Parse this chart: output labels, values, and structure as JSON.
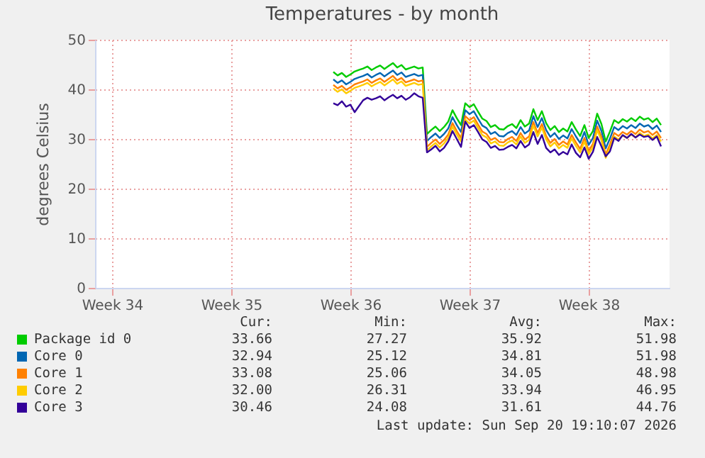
{
  "chart_data": {
    "type": "line",
    "title": "Temperatures - by month",
    "ylabel": "degrees Celsius",
    "categories": [
      null,
      null,
      null,
      null,
      "Week 34",
      null,
      null,
      null,
      null,
      null,
      null,
      null,
      null,
      null,
      null,
      null,
      null,
      null,
      null,
      null,
      null,
      null,
      null,
      null,
      null,
      null,
      null,
      null,
      null,
      null,
      null,
      null,
      "Week 35",
      null,
      null,
      null,
      null,
      null,
      null,
      null,
      null,
      null,
      null,
      null,
      null,
      null,
      null,
      null,
      null,
      null,
      null,
      null,
      null,
      null,
      null,
      null,
      null,
      null,
      null,
      null,
      "Week 36",
      null,
      null,
      null,
      null,
      null,
      null,
      null,
      null,
      null,
      null,
      null,
      null,
      null,
      null,
      null,
      null,
      null,
      null,
      null,
      null,
      null,
      null,
      null,
      null,
      null,
      null,
      null,
      "Week 37",
      null,
      null,
      null,
      null,
      null,
      null,
      null,
      null,
      null,
      null,
      null,
      null,
      null,
      null,
      null,
      null,
      null,
      null,
      null,
      null,
      null,
      null,
      null,
      null,
      null,
      null,
      null,
      "Week 38",
      null,
      null,
      null,
      null,
      null,
      null,
      null,
      null,
      null,
      null,
      null,
      null,
      null,
      null,
      null,
      null,
      null,
      null,
      null
    ],
    "ylim": [
      0,
      50
    ],
    "yticks": [
      0,
      10,
      20,
      30,
      40,
      50
    ],
    "grid": true,
    "legend": "bottom",
    "series": [
      {
        "name": "Package id 0",
        "color": "#00cc00",
        "values": [
          null,
          null,
          null,
          null,
          null,
          null,
          null,
          null,
          null,
          null,
          null,
          null,
          null,
          null,
          null,
          null,
          null,
          null,
          null,
          null,
          null,
          null,
          null,
          null,
          null,
          null,
          null,
          null,
          null,
          null,
          null,
          null,
          null,
          null,
          null,
          null,
          null,
          null,
          null,
          null,
          null,
          null,
          null,
          null,
          null,
          null,
          null,
          null,
          null,
          null,
          null,
          null,
          null,
          null,
          null,
          null,
          43.5,
          42.8,
          43.3,
          42.5,
          43.0,
          43.6,
          43.9,
          44.2,
          44.6,
          43.9,
          44.4,
          44.8,
          44.1,
          44.7,
          45.3,
          44.4,
          44.9,
          44.0,
          44.3,
          44.6,
          44.2,
          44.4,
          31.0,
          31.8,
          32.5,
          31.6,
          32.4,
          33.5,
          35.8,
          34.2,
          32.8,
          37.2,
          36.4,
          37.0,
          35.5,
          34.1,
          33.6,
          32.4,
          32.8,
          32.0,
          31.9,
          32.6,
          33.0,
          32.2,
          33.8,
          32.5,
          33.1,
          36.0,
          33.8,
          35.6,
          33.2,
          31.8,
          32.6,
          31.4,
          32.1,
          31.5,
          33.4,
          31.9,
          30.6,
          32.8,
          30.2,
          31.6,
          35.1,
          33.0,
          29.5,
          31.5,
          33.8,
          33.2,
          34.0,
          33.5,
          34.2,
          33.6,
          34.5,
          33.9,
          34.2,
          33.4,
          34.1,
          32.8,
          null,
          null
        ]
      },
      {
        "name": "Core 0",
        "color": "#0066b3",
        "values": [
          null,
          null,
          null,
          null,
          null,
          null,
          null,
          null,
          null,
          null,
          null,
          null,
          null,
          null,
          null,
          null,
          null,
          null,
          null,
          null,
          null,
          null,
          null,
          null,
          null,
          null,
          null,
          null,
          null,
          null,
          null,
          null,
          null,
          null,
          null,
          null,
          null,
          null,
          null,
          null,
          null,
          null,
          null,
          null,
          null,
          null,
          null,
          null,
          null,
          null,
          null,
          null,
          null,
          null,
          null,
          null,
          42.0,
          41.3,
          41.8,
          41.0,
          41.5,
          42.1,
          42.4,
          42.7,
          43.1,
          42.4,
          42.9,
          43.3,
          42.6,
          43.2,
          43.8,
          42.9,
          43.4,
          42.5,
          42.8,
          43.1,
          42.7,
          42.9,
          29.6,
          30.4,
          31.1,
          30.2,
          31.0,
          32.1,
          34.4,
          32.8,
          31.4,
          35.8,
          35.0,
          35.6,
          34.1,
          32.7,
          32.2,
          31.0,
          31.4,
          30.6,
          30.5,
          31.2,
          31.6,
          30.8,
          32.4,
          31.1,
          31.7,
          34.6,
          32.4,
          34.2,
          31.8,
          30.4,
          31.2,
          30.0,
          30.7,
          30.1,
          32.0,
          30.5,
          29.2,
          31.4,
          28.8,
          30.2,
          33.7,
          31.6,
          28.1,
          30.1,
          32.4,
          31.8,
          32.6,
          32.1,
          32.8,
          32.2,
          33.1,
          32.5,
          32.8,
          32.0,
          32.7,
          31.4,
          null,
          null
        ]
      },
      {
        "name": "Core 1",
        "color": "#ff8000",
        "values": [
          null,
          null,
          null,
          null,
          null,
          null,
          null,
          null,
          null,
          null,
          null,
          null,
          null,
          null,
          null,
          null,
          null,
          null,
          null,
          null,
          null,
          null,
          null,
          null,
          null,
          null,
          null,
          null,
          null,
          null,
          null,
          null,
          null,
          null,
          null,
          null,
          null,
          null,
          null,
          null,
          null,
          null,
          null,
          null,
          null,
          null,
          null,
          null,
          null,
          null,
          null,
          null,
          null,
          null,
          null,
          null,
          40.9,
          40.2,
          40.7,
          39.9,
          40.4,
          41.0,
          41.3,
          41.6,
          42.0,
          41.3,
          41.8,
          42.2,
          41.5,
          42.1,
          42.7,
          41.8,
          42.3,
          41.4,
          41.7,
          42.0,
          41.6,
          41.8,
          28.4,
          29.2,
          29.9,
          29.0,
          29.8,
          30.9,
          33.2,
          31.6,
          30.2,
          34.6,
          33.8,
          34.4,
          32.9,
          31.5,
          31.0,
          29.8,
          30.2,
          29.4,
          29.3,
          30.0,
          30.4,
          29.6,
          31.2,
          29.9,
          30.5,
          33.4,
          31.2,
          33.0,
          30.6,
          29.2,
          30.0,
          28.8,
          29.5,
          28.9,
          30.8,
          29.3,
          28.0,
          30.2,
          27.6,
          29.0,
          32.5,
          30.4,
          26.9,
          28.9,
          31.2,
          30.6,
          31.4,
          30.9,
          31.6,
          31.0,
          31.9,
          31.3,
          31.6,
          30.8,
          31.5,
          30.2,
          null,
          null
        ]
      },
      {
        "name": "Core 2",
        "color": "#ffcc00",
        "values": [
          null,
          null,
          null,
          null,
          null,
          null,
          null,
          null,
          null,
          null,
          null,
          null,
          null,
          null,
          null,
          null,
          null,
          null,
          null,
          null,
          null,
          null,
          null,
          null,
          null,
          null,
          null,
          null,
          null,
          null,
          null,
          null,
          null,
          null,
          null,
          null,
          null,
          null,
          null,
          null,
          null,
          null,
          null,
          null,
          null,
          null,
          null,
          null,
          null,
          null,
          null,
          null,
          null,
          null,
          null,
          null,
          40.2,
          39.5,
          40.0,
          39.2,
          39.7,
          40.3,
          40.6,
          40.9,
          41.3,
          40.6,
          41.1,
          41.5,
          40.8,
          41.4,
          42.0,
          41.1,
          41.6,
          40.7,
          41.0,
          41.3,
          40.9,
          41.1,
          27.7,
          28.5,
          29.2,
          28.3,
          29.1,
          30.2,
          32.5,
          30.9,
          29.5,
          33.9,
          33.1,
          33.7,
          32.2,
          30.8,
          30.3,
          29.1,
          29.5,
          28.7,
          28.6,
          29.3,
          29.7,
          28.9,
          30.5,
          29.2,
          29.8,
          32.7,
          30.5,
          32.3,
          29.9,
          28.5,
          29.3,
          28.1,
          28.8,
          28.2,
          30.1,
          28.6,
          27.3,
          29.5,
          26.9,
          28.3,
          31.8,
          29.7,
          26.2,
          28.2,
          30.5,
          29.9,
          30.7,
          30.2,
          30.9,
          30.3,
          31.2,
          30.6,
          30.9,
          30.1,
          30.8,
          29.5,
          null,
          null
        ]
      },
      {
        "name": "Core 3",
        "color": "#330099",
        "values": [
          null,
          null,
          null,
          null,
          null,
          null,
          null,
          null,
          null,
          null,
          null,
          null,
          null,
          null,
          null,
          null,
          null,
          null,
          null,
          null,
          null,
          null,
          null,
          null,
          null,
          null,
          null,
          null,
          null,
          null,
          null,
          null,
          null,
          null,
          null,
          null,
          null,
          null,
          null,
          null,
          null,
          null,
          null,
          null,
          null,
          null,
          null,
          null,
          null,
          null,
          null,
          null,
          null,
          null,
          null,
          null,
          37.2,
          36.8,
          37.6,
          36.5,
          36.9,
          35.4,
          36.6,
          37.8,
          38.3,
          37.9,
          38.2,
          38.6,
          37.8,
          38.4,
          38.9,
          38.2,
          38.7,
          37.9,
          38.4,
          39.2,
          38.6,
          38.3,
          27.3,
          27.9,
          28.6,
          27.5,
          28.2,
          29.5,
          31.6,
          30.0,
          28.4,
          33.5,
          32.2,
          32.8,
          31.4,
          29.9,
          29.4,
          28.2,
          28.6,
          27.8,
          27.9,
          28.4,
          28.8,
          28.1,
          29.6,
          28.3,
          28.9,
          31.4,
          29.0,
          30.8,
          28.2,
          27.3,
          27.9,
          26.8,
          27.4,
          26.9,
          28.9,
          27.2,
          26.3,
          28.3,
          26.0,
          27.4,
          30.4,
          28.5,
          26.5,
          27.5,
          30.2,
          29.6,
          30.8,
          30.2,
          31.0,
          30.3,
          30.9,
          30.4,
          30.6,
          29.8,
          30.5,
          28.5,
          null,
          null
        ]
      }
    ],
    "annotations": [
      "Cur:",
      "Min:",
      "Avg:",
      "Max:",
      "33.66",
      "27.27",
      "35.92",
      "51.98",
      "32.94",
      "25.12",
      "34.81",
      "51.98",
      "33.08",
      "25.06",
      "34.05",
      "48.98",
      "32.00",
      "26.31",
      "33.94",
      "46.95",
      "30.46",
      "24.08",
      "31.61",
      "44.76",
      "Last update: Sun Sep 20 19:10:07 2026"
    ]
  }
}
